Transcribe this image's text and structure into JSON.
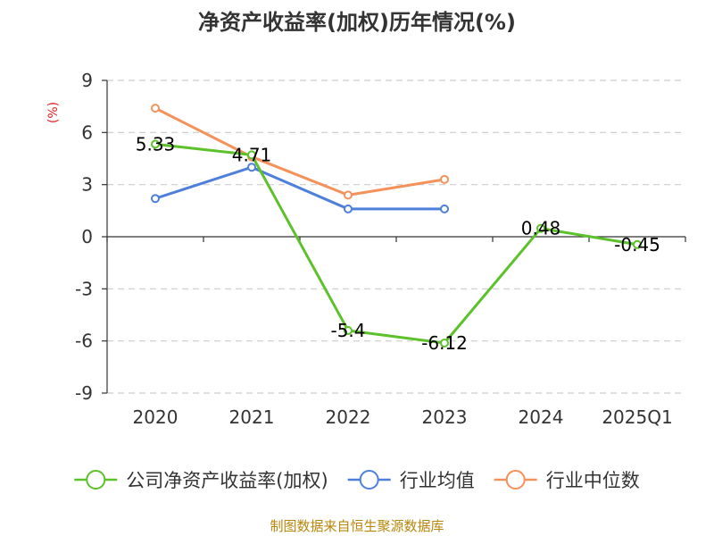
{
  "chart_data": {
    "type": "line",
    "title": "净资产收益率(加权)历年情况(%)",
    "ylabel": "(%)",
    "xlabel": "",
    "categories": [
      "2020",
      "2021",
      "2022",
      "2023",
      "2024",
      "2025Q1"
    ],
    "ylim": [
      -9,
      9
    ],
    "yticks": [
      9,
      6,
      3,
      0,
      -3,
      -6,
      -9
    ],
    "grid": "horizontal-dashed",
    "legend_position": "bottom",
    "series": [
      {
        "name": "公司净资产收益率(加权)",
        "color": "#5cc12a",
        "values": [
          5.33,
          4.71,
          -5.4,
          -6.12,
          0.48,
          -0.45
        ],
        "labels": [
          "5.33",
          "4.71",
          "-5.4",
          "-6.12",
          "0.48",
          "-0.45"
        ]
      },
      {
        "name": "行业均值",
        "color": "#4e7fdb",
        "values": [
          2.2,
          4.0,
          1.6,
          1.6,
          null,
          null
        ]
      },
      {
        "name": "行业中位数",
        "color": "#f5915a",
        "values": [
          7.4,
          4.6,
          2.4,
          3.3,
          null,
          null
        ]
      }
    ],
    "source": "制图数据来自恒生聚源数据库",
    "ylabel_color": "#e02020",
    "source_color": "#b8860b"
  }
}
